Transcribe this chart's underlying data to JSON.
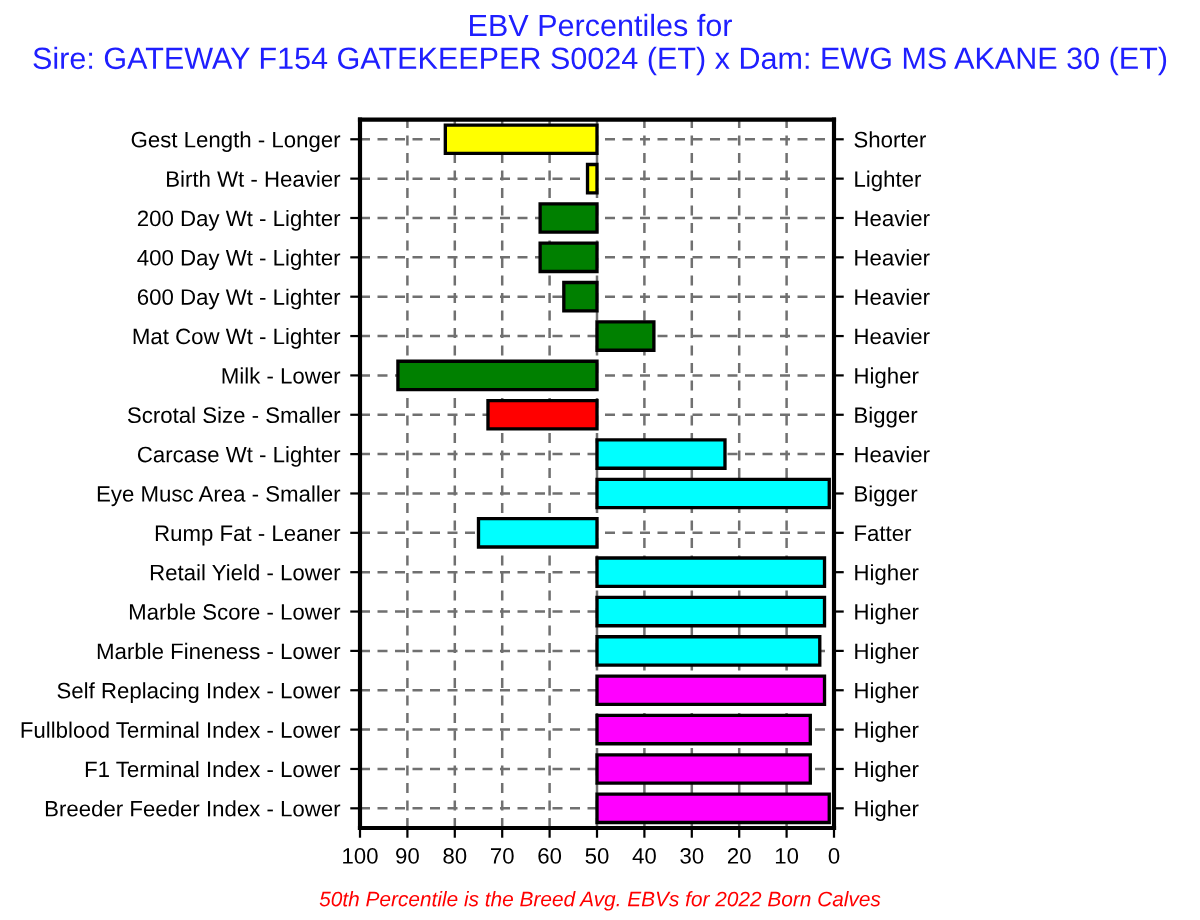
{
  "chart_data": {
    "type": "bar",
    "orientation": "horizontal",
    "title": "EBV Percentiles for\nSire: GATEWAY F154 GATEKEEPER S0024 (ET) x Dam: EWG MS AKANE 30 (ET)",
    "categories": [
      "Gest Length - Longer",
      "Birth Wt - Heavier",
      "200 Day Wt - Lighter",
      "400 Day Wt - Lighter",
      "600 Day Wt - Lighter",
      "Mat Cow Wt - Lighter",
      "Milk - Lower",
      "Scrotal Size - Smaller",
      "Carcase Wt - Lighter",
      "Eye Musc Area - Smaller",
      "Rump Fat - Leaner",
      "Retail Yield - Lower",
      "Marble Score - Lower",
      "Marble Fineness - Lower",
      "Self Replacing Index - Lower",
      "Fullblood Terminal Index - Lower",
      "F1 Terminal Index - Lower",
      "Breeder Feeder Index - Lower"
    ],
    "y2_categories": [
      "Shorter",
      "Lighter",
      "Heavier",
      "Heavier",
      "Heavier",
      "Heavier",
      "Higher",
      "Bigger",
      "Heavier",
      "Bigger",
      "Fatter",
      "Higher",
      "Higher",
      "Higher",
      "Higher",
      "Higher",
      "Higher",
      "Higher"
    ],
    "base": [
      50,
      50,
      50,
      50,
      50,
      50,
      50,
      50,
      50,
      50,
      50,
      50,
      50,
      50,
      50,
      50,
      50,
      50
    ],
    "values": [
      32,
      2,
      12,
      12,
      7,
      -12,
      42,
      23,
      -27,
      -49,
      25,
      -48,
      -48,
      -47,
      -48,
      -45,
      -45,
      -49
    ],
    "colors": [
      "#ffff00",
      "#ffff00",
      "#008000",
      "#008000",
      "#008000",
      "#008000",
      "#008000",
      "#ff0000",
      "#00ffff",
      "#00ffff",
      "#00ffff",
      "#00ffff",
      "#00ffff",
      "#00ffff",
      "#ff00ff",
      "#ff00ff",
      "#ff00ff",
      "#ff00ff"
    ],
    "xlim": [
      100,
      0
    ],
    "xticks": [
      100,
      90,
      80,
      70,
      60,
      50,
      40,
      30,
      20,
      10,
      0
    ],
    "grid": true,
    "annotations": [
      "50th Percentile is the Breed Avg. EBVs for 2022 Born Calves"
    ]
  }
}
